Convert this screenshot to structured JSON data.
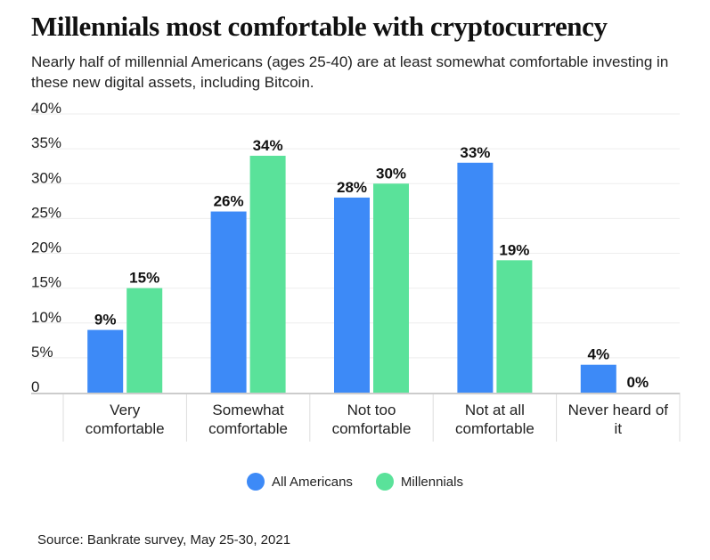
{
  "chart_data": {
    "type": "bar",
    "title": "Millennials most comfortable with cryptocurrency",
    "subtitle": "Nearly half of millennial Americans (ages 25-40) are at least somewhat comfortable investing in these new digital assets, including Bitcoin.",
    "categories": [
      [
        "Very",
        "comfortable"
      ],
      [
        "Somewhat",
        "comfortable"
      ],
      [
        "Not too",
        "comfortable"
      ],
      [
        "Not at all",
        "comfortable"
      ],
      [
        "Never heard of",
        "it"
      ]
    ],
    "series": [
      {
        "name": "All Americans",
        "color": "#3d8af7",
        "values": [
          9,
          26,
          28,
          33,
          4
        ]
      },
      {
        "name": "Millennials",
        "color": "#5ae29a",
        "values": [
          15,
          34,
          30,
          19,
          0
        ]
      }
    ],
    "ylim": [
      0,
      40
    ],
    "yticks": [
      "0",
      "5%",
      "10%",
      "15%",
      "20%",
      "25%",
      "30%",
      "35%",
      "40%"
    ],
    "grid": true,
    "legend_position": "bottom",
    "source": "Source: Bankrate survey, May 25-30, 2021"
  }
}
